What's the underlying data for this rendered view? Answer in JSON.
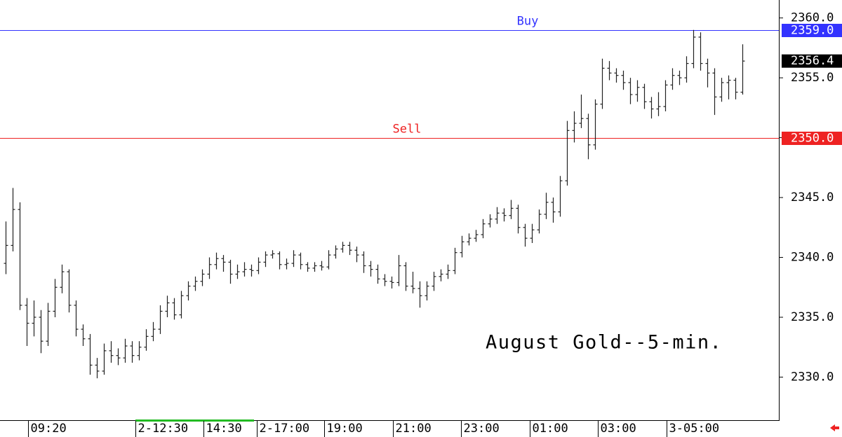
{
  "chart_data": {
    "type": "ohlc",
    "annotation": "August Gold--5-min.",
    "color": "#222222",
    "xlim": [
      -0.8,
      110.2
    ],
    "xticks": [
      {
        "value": 3.2,
        "label": "09:20"
      },
      {
        "value": 18.5,
        "label": "2-12:30"
      },
      {
        "value": 28.2,
        "label": "14:30"
      },
      {
        "value": 35.8,
        "label": "2-17:00"
      },
      {
        "value": 45.4,
        "label": "19:00"
      },
      {
        "value": 55.2,
        "label": "21:00"
      },
      {
        "value": 64.9,
        "label": "23:00"
      },
      {
        "value": 74.7,
        "label": "01:00"
      },
      {
        "value": 84.4,
        "label": "03:00"
      },
      {
        "value": 94.2,
        "label": "3-05:00"
      }
    ],
    "ylim": [
      2326.4,
      2361.5
    ],
    "yticks": [
      {
        "value": 2330,
        "label": "2330.0"
      },
      {
        "value": 2335,
        "label": "2335.0"
      },
      {
        "value": 2340,
        "label": "2340.0"
      },
      {
        "value": 2345,
        "label": "2345.0"
      },
      {
        "value": 2350,
        "label": "2350.0"
      },
      {
        "value": 2355,
        "label": "2355.0"
      },
      {
        "value": 2360,
        "label": "2360.0"
      }
    ],
    "reference_lines": [
      {
        "name": "Buy",
        "value": 2359.0,
        "value_label": "2359.0",
        "color": "#3333ff"
      },
      {
        "name": "Sell",
        "value": 2350.0,
        "value_label": "2350.0",
        "color": "#ee2222"
      }
    ],
    "last_price": {
      "value": 2356.4,
      "label": "2356.4",
      "color": "#000000"
    },
    "open": [
      2339.5,
      2341.0,
      2344.0,
      2336.0,
      2334.5,
      2335.0,
      2333.0,
      2335.5,
      2337.5,
      2338.8,
      2336.0,
      2334.0,
      2333.2,
      2331.0,
      2330.5,
      2332.2,
      2331.8,
      2331.6,
      2332.6,
      2331.8,
      2332.5,
      2333.4,
      2334.0,
      2335.5,
      2336.2,
      2335.2,
      2336.8,
      2337.6,
      2338.0,
      2338.6,
      2339.4,
      2339.9,
      2339.6,
      2338.6,
      2338.8,
      2339.0,
      2338.9,
      2339.6,
      2340.2,
      2340.3,
      2339.4,
      2339.5,
      2340.2,
      2339.4,
      2339.1,
      2339.3,
      2339.2,
      2340.2,
      2340.7,
      2341.0,
      2340.6,
      2340.2,
      2339.3,
      2339.0,
      2338.2,
      2338.0,
      2337.9,
      2339.3,
      2337.6,
      2337.4,
      2336.8,
      2337.6,
      2338.4,
      2338.6,
      2338.9,
      2340.4,
      2341.3,
      2341.6,
      2341.9,
      2342.8,
      2343.2,
      2343.7,
      2343.5,
      2344.1,
      2342.5,
      2341.6,
      2342.3,
      2343.6,
      2344.6,
      2343.8,
      2346.4,
      2350.6,
      2351.2,
      2351.6,
      2349.4,
      2352.8,
      2355.8,
      2355.4,
      2355.2,
      2354.6,
      2353.6,
      2354.2,
      2353.0,
      2352.4,
      2352.6,
      2354.4,
      2355.2,
      2355.0,
      2356.2,
      2358.4,
      2356.2,
      2355.4,
      2353.4,
      2354.6,
      2354.8,
      2353.8
    ],
    "high": [
      2343.0,
      2345.8,
      2344.6,
      2336.6,
      2336.4,
      2335.6,
      2336.2,
      2338.2,
      2339.4,
      2339.0,
      2336.4,
      2334.4,
      2333.6,
      2331.6,
      2332.8,
      2333.0,
      2332.4,
      2333.2,
      2333.0,
      2333.0,
      2334.0,
      2334.6,
      2336.0,
      2336.8,
      2336.6,
      2337.2,
      2338.0,
      2338.4,
      2339.0,
      2340.0,
      2340.4,
      2340.2,
      2339.8,
      2339.4,
      2339.6,
      2339.4,
      2340.0,
      2340.5,
      2340.6,
      2340.5,
      2339.9,
      2340.6,
      2340.4,
      2339.6,
      2339.6,
      2339.7,
      2340.6,
      2341.0,
      2341.3,
      2341.3,
      2340.9,
      2340.5,
      2339.7,
      2339.4,
      2338.6,
      2338.4,
      2340.2,
      2339.6,
      2338.8,
      2338.0,
      2338.0,
      2338.8,
      2339.0,
      2339.4,
      2340.8,
      2341.8,
      2342.0,
      2342.3,
      2343.2,
      2343.6,
      2344.2,
      2344.1,
      2344.8,
      2344.4,
      2342.8,
      2342.8,
      2344.0,
      2345.4,
      2345.0,
      2346.8,
      2351.4,
      2352.2,
      2353.6,
      2352.0,
      2353.2,
      2356.6,
      2356.4,
      2355.8,
      2355.6,
      2355.0,
      2354.8,
      2354.5,
      2353.4,
      2353.8,
      2354.8,
      2355.8,
      2355.6,
      2356.8,
      2359.0,
      2358.8,
      2356.6,
      2355.8,
      2355.0,
      2355.2,
      2355.0,
      2357.8
    ],
    "low": [
      2338.6,
      2340.5,
      2335.6,
      2332.6,
      2333.4,
      2332.0,
      2332.6,
      2335.0,
      2337.0,
      2335.4,
      2333.4,
      2332.6,
      2330.2,
      2329.9,
      2330.2,
      2331.2,
      2331.0,
      2331.2,
      2331.2,
      2331.4,
      2332.2,
      2333.0,
      2333.6,
      2335.0,
      2334.8,
      2334.9,
      2336.4,
      2337.2,
      2337.6,
      2338.2,
      2339.0,
      2338.8,
      2337.8,
      2338.2,
      2338.4,
      2338.4,
      2338.6,
      2339.2,
      2339.9,
      2339.0,
      2339.0,
      2339.2,
      2339.0,
      2338.8,
      2338.8,
      2338.9,
      2339.0,
      2339.9,
      2340.4,
      2340.2,
      2339.6,
      2338.7,
      2338.4,
      2337.8,
      2337.6,
      2337.4,
      2337.6,
      2337.2,
      2337.0,
      2335.8,
      2336.4,
      2337.2,
      2338.0,
      2338.2,
      2338.6,
      2340.0,
      2341.0,
      2341.3,
      2341.6,
      2342.5,
      2342.8,
      2343.0,
      2343.2,
      2342.0,
      2340.9,
      2341.2,
      2342.0,
      2343.2,
      2342.9,
      2343.4,
      2346.0,
      2349.6,
      2350.8,
      2348.2,
      2349.0,
      2352.4,
      2354.8,
      2354.6,
      2354.0,
      2352.8,
      2353.0,
      2352.4,
      2351.6,
      2351.8,
      2352.2,
      2354.0,
      2354.4,
      2354.6,
      2355.8,
      2355.6,
      2354.2,
      2351.9,
      2353.0,
      2353.2,
      2353.2,
      2353.6
    ],
    "close": [
      2341.0,
      2344.0,
      2336.0,
      2334.5,
      2335.0,
      2333.0,
      2335.5,
      2337.5,
      2338.8,
      2336.0,
      2334.0,
      2333.2,
      2331.0,
      2330.5,
      2332.2,
      2331.8,
      2331.6,
      2332.6,
      2331.8,
      2332.5,
      2333.4,
      2334.0,
      2335.5,
      2336.2,
      2335.2,
      2336.8,
      2337.6,
      2338.0,
      2338.6,
      2339.4,
      2339.9,
      2339.6,
      2338.6,
      2338.8,
      2339.0,
      2338.9,
      2339.6,
      2340.2,
      2340.3,
      2339.4,
      2339.5,
      2340.2,
      2339.4,
      2339.1,
      2339.3,
      2339.2,
      2340.2,
      2340.7,
      2341.0,
      2340.6,
      2340.2,
      2339.3,
      2339.0,
      2338.2,
      2338.0,
      2337.9,
      2339.3,
      2337.6,
      2337.4,
      2336.8,
      2337.6,
      2338.4,
      2338.6,
      2338.9,
      2340.4,
      2341.3,
      2341.6,
      2341.9,
      2342.8,
      2343.2,
      2343.7,
      2343.5,
      2344.1,
      2342.5,
      2341.6,
      2342.3,
      2343.6,
      2344.6,
      2343.8,
      2346.4,
      2350.6,
      2351.2,
      2351.6,
      2349.4,
      2352.8,
      2355.8,
      2355.4,
      2355.2,
      2354.6,
      2353.6,
      2354.2,
      2353.0,
      2352.4,
      2352.6,
      2354.4,
      2355.2,
      2355.0,
      2356.2,
      2358.4,
      2356.2,
      2355.4,
      2353.4,
      2354.6,
      2354.8,
      2353.8,
      2356.4
    ]
  }
}
